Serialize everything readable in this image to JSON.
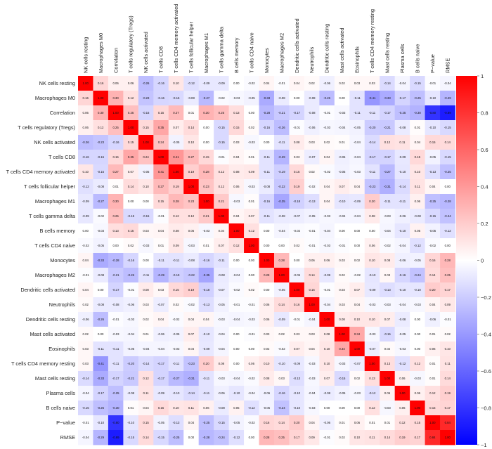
{
  "chart_data": {
    "type": "heatmap",
    "labels": [
      "NK cells resting",
      "Macrophages M0",
      "Correlation",
      "T cells regulatory (Tregs)",
      "NK cells activated",
      "T cells CD8",
      "T cells CD4 memory activated",
      "T cells follicular helper",
      "Macrophages M1",
      "T cells gamma delta",
      "B cells memory",
      "T cells CD4 naive",
      "Monocytes",
      "Macrophages M2",
      "Dendritic cells activated",
      "Neutrophils",
      "Dendritic cells resting",
      "Mast cells activated",
      "Eosinophils",
      "T cells CD4 memory resting",
      "Mast cells resting",
      "Plasma cells",
      "B cells naive",
      "P−value",
      "RMSE"
    ],
    "matrix": [
      [
        1.0,
        0.16,
        0.06,
        0.06,
        -0.26,
        -0.16,
        0.1,
        -0.12,
        -0.09,
        -0.09,
        0.0,
        -0.02,
        0.04,
        -0.01,
        0.04,
        0.02,
        -0.06,
        0.02,
        0.03,
        0.03,
        -0.14,
        -0.04,
        -0.15,
        -0.01,
        -0.04
      ],
      [
        0.16,
        1.0,
        0.3,
        0.12,
        -0.23,
        -0.16,
        -0.15,
        -0.08,
        -0.27,
        -0.02,
        -0.03,
        -0.05,
        -0.33,
        -0.08,
        0.0,
        -0.08,
        -0.26,
        0.0,
        -0.11,
        -0.41,
        -0.33,
        -0.17,
        -0.25,
        -0.1,
        -0.29
      ],
      [
        0.06,
        0.3,
        1.0,
        0.25,
        -0.16,
        0.15,
        0.27,
        0.01,
        0.3,
        0.25,
        0.13,
        0.0,
        -0.28,
        -0.21,
        -0.17,
        -0.08,
        -0.01,
        -0.03,
        -0.11,
        -0.11,
        -0.17,
        -0.25,
        -0.3,
        -0.8,
        -0.89
      ],
      [
        0.06,
        0.12,
        0.25,
        1.0,
        0.15,
        0.35,
        0.07,
        0.14,
        0.0,
        -0.15,
        0.15,
        0.02,
        -0.16,
        -0.26,
        -0.01,
        -0.06,
        -0.03,
        -0.04,
        -0.05,
        -0.2,
        -0.21,
        -0.08,
        0.01,
        -0.1,
        -0.15
      ],
      [
        -0.26,
        -0.23,
        -0.16,
        0.15,
        1.0,
        0.24,
        -0.05,
        0.1,
        0.0,
        -0.15,
        0.03,
        -0.03,
        0.0,
        -0.11,
        0.08,
        0.03,
        0.02,
        0.01,
        -0.04,
        -0.14,
        0.12,
        0.11,
        0.04,
        0.15,
        0.14
      ],
      [
        -0.16,
        -0.16,
        0.15,
        0.35,
        0.24,
        1.0,
        0.41,
        0.27,
        0.15,
        -0.01,
        0.04,
        0.01,
        -0.11,
        -0.29,
        0.03,
        -0.07,
        0.04,
        -0.06,
        -0.04,
        -0.17,
        -0.17,
        -0.09,
        0.15,
        -0.05,
        -0.15
      ],
      [
        0.1,
        -0.15,
        0.27,
        0.07,
        -0.05,
        0.41,
        1.0,
        0.19,
        0.28,
        0.12,
        0.08,
        0.09,
        -0.11,
        -0.19,
        0.15,
        0.02,
        -0.02,
        -0.05,
        -0.03,
        -0.11,
        -0.27,
        -0.1,
        0.1,
        -0.13,
        -0.25
      ],
      [
        -0.12,
        -0.08,
        0.01,
        0.14,
        0.1,
        0.27,
        0.19,
        1.0,
        0.23,
        0.12,
        0.06,
        -0.03,
        -0.08,
        -0.22,
        0.19,
        -0.02,
        0.04,
        0.07,
        0.04,
        -0.23,
        -0.31,
        -0.14,
        0.11,
        0.04,
        0.0
      ],
      [
        -0.09,
        -0.27,
        0.3,
        0.0,
        0.0,
        0.15,
        0.28,
        0.23,
        1.0,
        0.21,
        -0.03,
        0.01,
        -0.16,
        -0.35,
        -0.18,
        -0.13,
        0.04,
        -0.1,
        -0.09,
        0.2,
        -0.11,
        -0.11,
        0.06,
        -0.25,
        -0.28
      ],
      [
        -0.09,
        -0.02,
        0.25,
        -0.15,
        -0.15,
        -0.01,
        0.12,
        0.12,
        0.21,
        1.0,
        0.04,
        0.07,
        -0.11,
        -0.08,
        -0.07,
        -0.05,
        -0.03,
        -0.04,
        -0.04,
        0.08,
        -0.03,
        -0.06,
        -0.08,
        -0.15,
        -0.24
      ],
      [
        0.0,
        -0.03,
        0.13,
        0.15,
        0.03,
        0.04,
        0.08,
        0.06,
        -0.03,
        0.04,
        1.0,
        0.12,
        0.0,
        -0.04,
        -0.02,
        -0.01,
        -0.04,
        0.0,
        0.0,
        0.0,
        -0.04,
        -0.1,
        0.05,
        -0.05,
        -0.12
      ],
      [
        -0.02,
        -0.05,
        0.0,
        0.02,
        -0.03,
        0.01,
        0.09,
        -0.03,
        0.01,
        0.07,
        0.12,
        1.0,
        0.0,
        0.0,
        0.02,
        -0.01,
        -0.03,
        -0.01,
        0.0,
        0.06,
        -0.02,
        -0.04,
        -0.12,
        -0.02,
        0.0
      ],
      [
        0.04,
        -0.33,
        -0.28,
        -0.16,
        0.0,
        -0.11,
        -0.11,
        -0.08,
        -0.16,
        -0.11,
        0.0,
        0.0,
        1.0,
        0.28,
        0.0,
        0.06,
        0.06,
        0.03,
        0.02,
        0.1,
        0.08,
        -0.06,
        -0.05,
        0.16,
        0.28
      ],
      [
        -0.01,
        -0.08,
        -0.21,
        -0.26,
        -0.11,
        -0.29,
        -0.19,
        -0.22,
        -0.35,
        -0.08,
        -0.04,
        0.0,
        0.28,
        1.0,
        -0.05,
        0.14,
        -0.09,
        0.02,
        -0.02,
        -0.1,
        0.03,
        -0.16,
        -0.24,
        0.14,
        0.25
      ],
      [
        0.04,
        0.0,
        -0.17,
        -0.01,
        0.08,
        0.03,
        0.15,
        0.19,
        -0.18,
        -0.07,
        -0.02,
        0.02,
        0.0,
        -0.05,
        1.0,
        0.16,
        -0.01,
        0.03,
        0.07,
        -0.09,
        -0.13,
        -0.1,
        -0.1,
        0.2,
        0.17
      ],
      [
        0.02,
        -0.08,
        -0.08,
        -0.06,
        0.03,
        -0.07,
        0.02,
        -0.02,
        -0.13,
        -0.05,
        -0.01,
        -0.01,
        0.06,
        0.14,
        0.16,
        1.0,
        -0.04,
        0.03,
        0.04,
        -0.03,
        -0.03,
        -0.04,
        -0.03,
        0.04,
        0.09
      ],
      [
        -0.06,
        -0.26,
        -0.01,
        -0.03,
        0.02,
        0.04,
        -0.02,
        0.04,
        0.04,
        -0.03,
        -0.04,
        -0.03,
        0.06,
        -0.09,
        -0.01,
        -0.04,
        1.0,
        0.08,
        0.1,
        0.1,
        0.07,
        -0.08,
        0.0,
        -0.06,
        -0.01
      ],
      [
        0.02,
        0.0,
        -0.03,
        -0.04,
        0.01,
        -0.06,
        -0.05,
        0.07,
        -0.1,
        -0.04,
        0.0,
        -0.01,
        0.03,
        0.02,
        0.03,
        0.03,
        0.08,
        1.0,
        0.34,
        -0.03,
        -0.15,
        -0.05,
        0.0,
        0.01,
        0.02
      ],
      [
        0.03,
        -0.11,
        -0.11,
        -0.05,
        -0.04,
        -0.04,
        -0.03,
        0.04,
        -0.09,
        -0.04,
        0.0,
        0.0,
        0.02,
        -0.02,
        0.07,
        0.04,
        0.1,
        0.34,
        1.0,
        -0.07,
        0.02,
        -0.03,
        0.0,
        0.06,
        0.1
      ],
      [
        0.03,
        -0.41,
        -0.11,
        -0.2,
        -0.14,
        -0.17,
        -0.11,
        -0.23,
        0.2,
        0.08,
        0.0,
        0.06,
        0.1,
        -0.1,
        -0.09,
        -0.03,
        0.1,
        -0.03,
        -0.07,
        1.0,
        0.13,
        -0.12,
        0.12,
        0.01,
        0.11
      ],
      [
        -0.14,
        -0.33,
        -0.17,
        -0.21,
        0.12,
        -0.17,
        -0.27,
        -0.31,
        -0.11,
        -0.03,
        -0.04,
        -0.02,
        0.08,
        0.03,
        -0.13,
        -0.03,
        0.07,
        -0.15,
        0.02,
        0.13,
        1.0,
        0.06,
        -0.03,
        0.01,
        0.14
      ],
      [
        -0.04,
        -0.17,
        -0.25,
        -0.08,
        0.11,
        -0.09,
        -0.1,
        -0.14,
        -0.11,
        -0.06,
        -0.1,
        -0.04,
        -0.06,
        -0.16,
        -0.1,
        -0.04,
        -0.08,
        -0.05,
        -0.03,
        -0.12,
        0.06,
        1.0,
        0.06,
        0.12,
        0.19
      ],
      [
        -0.15,
        -0.25,
        -0.3,
        0.01,
        0.04,
        0.15,
        0.1,
        0.11,
        0.06,
        -0.08,
        0.05,
        -0.12,
        -0.05,
        -0.24,
        -0.1,
        -0.03,
        0.0,
        0.0,
        0.0,
        0.12,
        -0.03,
        0.06,
        1.0,
        0.15,
        0.17
      ],
      [
        -0.01,
        -0.1,
        -0.8,
        -0.1,
        0.15,
        -0.05,
        -0.13,
        0.04,
        -0.25,
        -0.15,
        -0.05,
        -0.02,
        0.16,
        0.14,
        0.2,
        0.04,
        -0.06,
        0.01,
        0.06,
        0.01,
        0.01,
        0.12,
        0.15,
        1.0,
        0.84
      ],
      [
        -0.04,
        -0.29,
        -0.89,
        -0.15,
        0.14,
        -0.15,
        -0.25,
        0.0,
        -0.28,
        -0.24,
        -0.12,
        0.0,
        0.28,
        0.25,
        0.17,
        0.09,
        -0.01,
        0.02,
        0.1,
        0.11,
        0.14,
        0.19,
        0.17,
        0.84,
        1.0
      ]
    ],
    "value_range": [
      -1,
      1
    ],
    "colorscale": {
      "low": "#0000ff",
      "mid": "#ffffff",
      "high": "#ff0000"
    },
    "colorbar_ticks": [
      "1",
      "0.8",
      "0.6",
      "0.4",
      "0.2",
      "0",
      "−0.2",
      "−0.4",
      "−0.6",
      "−0.8",
      "−1"
    ],
    "colorbar_values": [
      1,
      0.8,
      0.6,
      0.4,
      0.2,
      0,
      -0.2,
      -0.4,
      -0.6,
      -0.8,
      -1
    ],
    "colorbar_position": "right",
    "row_label_position": "left",
    "column_label_position": "top"
  }
}
